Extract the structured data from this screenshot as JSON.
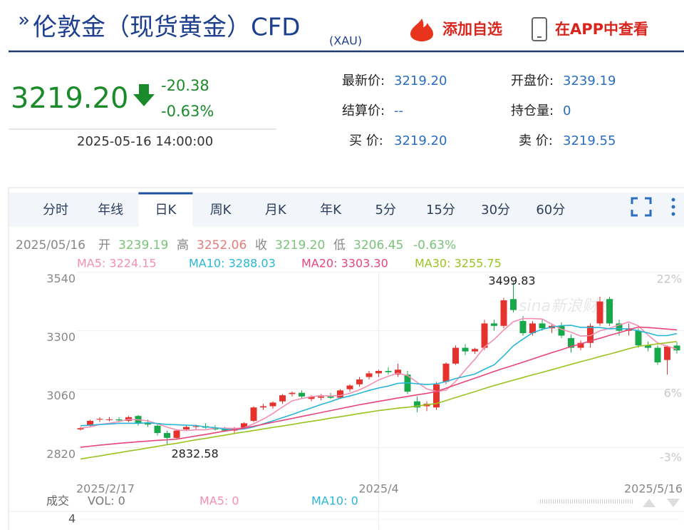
{
  "header": {
    "title": "伦敦金（现货黄金）CFD",
    "subtitle": "(XAU)",
    "add_watch": "添加自选",
    "view_app": "在APP中查看"
  },
  "quote": {
    "price": "3219.20",
    "change": "-20.38",
    "change_pct": "-0.63%",
    "time": "2025-05-16 14:00:00"
  },
  "info": [
    [
      "最新价:",
      "3219.20"
    ],
    [
      "开盘价:",
      "3239.19"
    ],
    [
      "结算价:",
      "--"
    ],
    [
      "持仓量:",
      "0"
    ],
    [
      "买  价:",
      "3219.20"
    ],
    [
      "卖  价:",
      "3219.55"
    ]
  ],
  "tabs": [
    "分时",
    "年线",
    "日K",
    "周K",
    "月K",
    "年K",
    "5分",
    "15分",
    "30分",
    "60分"
  ],
  "active_tab": 2,
  "chart_data": {
    "type": "candlestick",
    "info_line": {
      "date": "2025/05/16",
      "items": [
        [
          "开",
          "3239.19"
        ],
        [
          "高",
          "3252.06"
        ],
        [
          "收",
          "3219.20"
        ],
        [
          "低",
          "3206.45"
        ]
      ],
      "change": "-0.63%"
    },
    "categories": [
      "2025/2/17",
      null,
      null,
      null,
      null,
      null,
      null,
      null,
      null,
      null,
      null,
      null,
      null,
      null,
      null,
      null,
      null,
      null,
      null,
      null,
      null,
      null,
      null,
      null,
      null,
      null,
      null,
      null,
      null,
      null,
      null,
      "2025/4",
      null,
      null,
      null,
      null,
      null,
      null,
      null,
      null,
      null,
      null,
      null,
      null,
      null,
      null,
      null,
      null,
      null,
      null,
      null,
      null,
      null,
      null,
      null,
      null,
      null,
      null,
      null,
      null,
      null,
      null,
      "2025/5/16"
    ],
    "open": [
      2895,
      2910,
      2935,
      2934,
      2936,
      2930,
      2950,
      2920,
      2910,
      2880,
      2860,
      2895,
      2905,
      2908,
      2902,
      2895,
      2890,
      2900,
      2930,
      2985,
      2990,
      3010,
      3040,
      3045,
      3020,
      3025,
      3030,
      3025,
      3060,
      3080,
      3110,
      3125,
      3135,
      3120,
      3120,
      3010,
      2990,
      2985,
      3090,
      3165,
      3230,
      3215,
      3230,
      3330,
      3320,
      3430,
      3340,
      3290,
      3330,
      3310,
      3320,
      3270,
      3230,
      3250,
      3330,
      3430,
      3330,
      3300,
      3300,
      3240,
      3230,
      3180,
      3239.19
    ],
    "high": [
      2905,
      2935,
      2945,
      2946,
      2945,
      2950,
      2955,
      2935,
      2918,
      2890,
      2895,
      2912,
      2915,
      2920,
      2912,
      2905,
      2905,
      2925,
      2990,
      3000,
      3010,
      3040,
      3050,
      3055,
      3035,
      3040,
      3045,
      3060,
      3080,
      3110,
      3135,
      3140,
      3150,
      3165,
      3135,
      3030,
      3010,
      3090,
      3170,
      3240,
      3245,
      3230,
      3345,
      3345,
      3435,
      3499.83,
      3360,
      3340,
      3345,
      3330,
      3335,
      3285,
      3260,
      3330,
      3440,
      3440,
      3345,
      3330,
      3310,
      3255,
      3240,
      3240,
      3252.06
    ],
    "low": [
      2890,
      2905,
      2925,
      2928,
      2925,
      2925,
      2910,
      2905,
      2870,
      2832.58,
      2855,
      2888,
      2895,
      2898,
      2890,
      2885,
      2880,
      2895,
      2925,
      2975,
      2980,
      3000,
      3030,
      3020,
      3010,
      3015,
      3020,
      3020,
      3050,
      3070,
      3100,
      3110,
      3120,
      3110,
      3040,
      2965,
      2970,
      2975,
      3080,
      3160,
      3200,
      3205,
      3220,
      3300,
      3310,
      3375,
      3280,
      3280,
      3300,
      3290,
      3270,
      3210,
      3220,
      3230,
      3320,
      3320,
      3280,
      3280,
      3230,
      3215,
      3160,
      3120,
      3206.45
    ],
    "close": [
      2900,
      2930,
      2938,
      2936,
      2932,
      2945,
      2920,
      2915,
      2880,
      2860,
      2890,
      2905,
      2908,
      2902,
      2895,
      2890,
      2900,
      2920,
      2985,
      2990,
      3005,
      3035,
      3045,
      3030,
      3030,
      3030,
      3025,
      3055,
      3075,
      3100,
      3125,
      3135,
      3130,
      3140,
      3050,
      2985,
      3000,
      3080,
      3165,
      3230,
      3215,
      3225,
      3330,
      3320,
      3425,
      3385,
      3290,
      3330,
      3310,
      3320,
      3280,
      3230,
      3250,
      3320,
      3420,
      3330,
      3300,
      3310,
      3240,
      3230,
      3170,
      3235,
      3219.2
    ],
    "up_color": "#e5322d",
    "down_color": "#17a84b",
    "series": [
      {
        "name": "MA5: 3224.15",
        "color": "#f48fb1",
        "values": [
          2900,
          2905,
          2915,
          2920,
          2927,
          2936,
          2934,
          2930,
          2918,
          2904,
          2893,
          2890,
          2893,
          2893,
          2900,
          2900,
          2899,
          2901,
          2918,
          2937,
          2960,
          2987,
          3012,
          3022,
          3029,
          3034,
          3032,
          3034,
          3043,
          3057,
          3076,
          3098,
          3113,
          3126,
          3116,
          3088,
          3061,
          3051,
          3056,
          3092,
          3139,
          3183,
          3233,
          3264,
          3303,
          3337,
          3350,
          3350,
          3348,
          3327,
          3306,
          3294,
          3278,
          3280,
          3300,
          3310,
          3324,
          3336,
          3320,
          3282,
          3250,
          3237,
          3224.15
        ]
      },
      {
        "name": "MA10: 3288.03",
        "color": "#29b6d6",
        "values": [
          2910,
          2912,
          2915,
          2917,
          2920,
          2920,
          2920,
          2922,
          2919,
          2915,
          2914,
          2912,
          2911,
          2905,
          2902,
          2896,
          2894,
          2897,
          2905,
          2918,
          2930,
          2943,
          2956,
          2970,
          2983,
          2997,
          3009,
          3023,
          3032,
          3043,
          3055,
          3065,
          3073,
          3084,
          3086,
          3082,
          3079,
          3082,
          3091,
          3104,
          3113,
          3122,
          3142,
          3160,
          3197,
          3238,
          3266,
          3291,
          3306,
          3315,
          3321,
          3322,
          3314,
          3314,
          3313,
          3308,
          3309,
          3307,
          3300,
          3291,
          3280,
          3280,
          3288.03
        ]
      },
      {
        "name": "MA20: 3303.30",
        "color": "#e8457a",
        "values": [
          2822,
          2826,
          2830,
          2834,
          2838,
          2841,
          2844,
          2847,
          2850,
          2852,
          2855,
          2861,
          2868,
          2874,
          2881,
          2888,
          2894,
          2900,
          2908,
          2916,
          2924,
          2932,
          2940,
          2948,
          2956,
          2964,
          2972,
          2980,
          2988,
          2996,
          3003,
          3010,
          3017,
          3024,
          3030,
          3037,
          3043,
          3050,
          3064,
          3078,
          3092,
          3105,
          3119,
          3133,
          3146,
          3158,
          3171,
          3184,
          3197,
          3210,
          3222,
          3235,
          3246,
          3258,
          3269,
          3281,
          3292,
          3304,
          3315,
          3313,
          3310,
          3307,
          3303.3
        ]
      },
      {
        "name": "MA30: 3255.75",
        "color": "#9bc320",
        "values": [
          2773,
          2780,
          2786,
          2793,
          2799,
          2806,
          2812,
          2819,
          2825,
          2832,
          2838,
          2845,
          2852,
          2858,
          2865,
          2871,
          2878,
          2884,
          2890,
          2897,
          2903,
          2909,
          2915,
          2922,
          2928,
          2934,
          2941,
          2947,
          2953,
          2960,
          2966,
          2972,
          2977,
          2982,
          2986,
          2991,
          2996,
          3001,
          3013,
          3026,
          3038,
          3050,
          3063,
          3075,
          3086,
          3097,
          3108,
          3119,
          3129,
          3140,
          3151,
          3162,
          3173,
          3183,
          3194,
          3204,
          3215,
          3226,
          3236,
          3241,
          3246,
          3251,
          3255.75
        ]
      }
    ],
    "ylim": [
      2640,
      3545
    ],
    "yticks": [
      2820,
      3060,
      3300,
      3540
    ],
    "y2lim": [
      -7.7,
      23.2
    ],
    "y2ticks": [
      {
        "value": -3,
        "label": "-3%"
      },
      {
        "value": 6,
        "label": "6%"
      },
      {
        "value": 22,
        "label": "22%"
      }
    ],
    "grid": true,
    "max_label": "3499.83",
    "min_label": "2832.58",
    "watermark": "sina新浪财经"
  },
  "volume": {
    "title": "成交",
    "vol": "VOL: 0",
    "ma5": "MA5: 0",
    "ma10": "MA10: 0",
    "yticks": [
      4
    ]
  }
}
